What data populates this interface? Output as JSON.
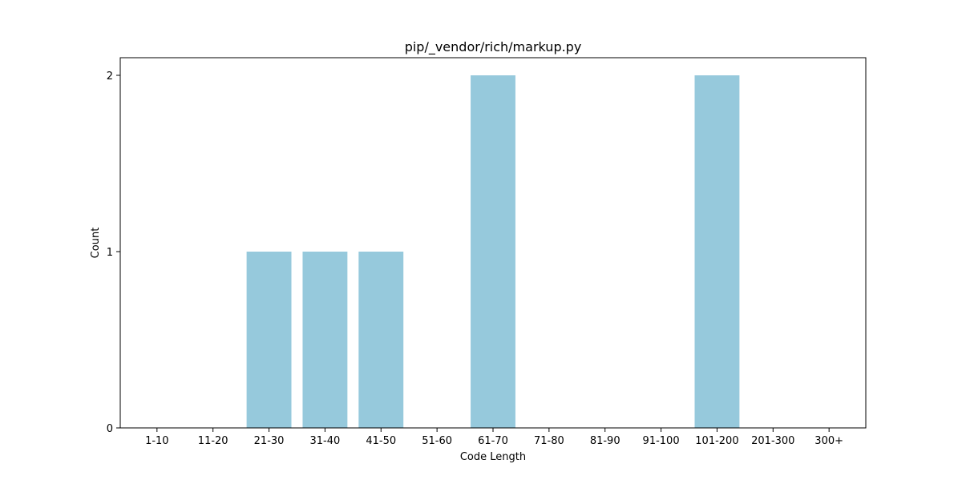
{
  "chart_data": {
    "type": "bar",
    "title": "pip/_vendor/rich/markup.py",
    "xlabel": "Code Length",
    "ylabel": "Count",
    "categories": [
      "1-10",
      "11-20",
      "21-30",
      "31-40",
      "41-50",
      "51-60",
      "61-70",
      "71-80",
      "81-90",
      "91-100",
      "101-200",
      "201-300",
      "300+"
    ],
    "values": [
      0,
      0,
      1,
      1,
      1,
      0,
      2,
      0,
      0,
      0,
      2,
      0,
      0
    ],
    "ylim": [
      0,
      2.1
    ],
    "yticks": [
      0,
      1,
      2
    ],
    "grid": false,
    "bar_color": "#96c9dc"
  }
}
